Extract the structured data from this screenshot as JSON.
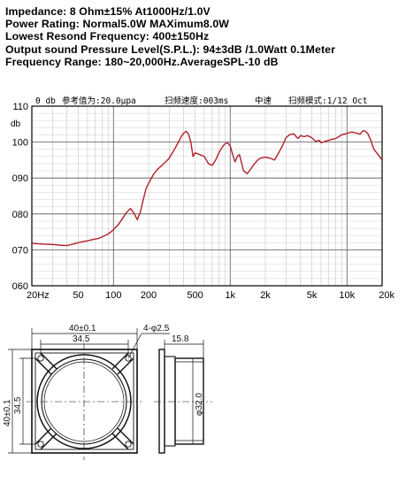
{
  "specs": {
    "impedance": "Impedance: 8 Ohm±15%  At1000Hz/1.0V",
    "power_rating": "Power Rating: Normal5.0W  MAXimum8.0W",
    "resonance": "Lowest Resond Frequency: 400±150Hz",
    "spl": "Output sound Pressure Level(S.P.L.): 94±3dB /1.0Watt 0.1Meter",
    "freq_range": "Frequency Range: 180~20,000Hz.AverageSPL-10 dB"
  },
  "chart_header": {
    "zero_db": "0 db",
    "ref_value": "参考值为:20.0μpa",
    "scan_speed": "扫频速度:003ms",
    "mid_speed": "中速",
    "scan_mode": "扫频模式:1/12 Oct"
  },
  "chart_data": {
    "type": "line",
    "ylabel": "db",
    "x_scale": "log",
    "xlim": [
      20,
      20000
    ],
    "ylim": [
      60,
      110
    ],
    "grid": true,
    "y_ticks": [
      "110",
      "100",
      "090",
      "080",
      "070",
      "060"
    ],
    "y_tick_values": [
      110,
      100,
      90,
      80,
      70,
      60
    ],
    "x_ticks": [
      "20Hz",
      "50",
      "100",
      "200",
      "500",
      "1k",
      "2k",
      "5k",
      "10k",
      "20k"
    ],
    "x_tick_values": [
      20,
      50,
      100,
      200,
      500,
      1000,
      2000,
      5000,
      10000,
      20000
    ],
    "line_color": "#b0202a",
    "series": [
      {
        "x": [
          20,
          25,
          30,
          35,
          40,
          45,
          50,
          55,
          60,
          65,
          70,
          75,
          80,
          85,
          90,
          95,
          100,
          110,
          120,
          130,
          140,
          150,
          160,
          170,
          180,
          190,
          200,
          220,
          240,
          260,
          280,
          300,
          320,
          340,
          360,
          380,
          400,
          420,
          440,
          460,
          480,
          500,
          550,
          600,
          650,
          700,
          750,
          800,
          850,
          900,
          950,
          1000,
          1050,
          1100,
          1150,
          1200,
          1300,
          1400,
          1500,
          1600,
          1700,
          1800,
          2000,
          2200,
          2400,
          2600,
          2800,
          3000,
          3200,
          3500,
          3800,
          4000,
          4300,
          4600,
          5000,
          5400,
          5800,
          6000,
          6500,
          7000,
          7500,
          8000,
          8500,
          9000,
          10000,
          11000,
          12000,
          13000,
          13500,
          14000,
          15000,
          16000,
          17000,
          18000,
          20000
        ],
        "y": [
          71.8,
          71.6,
          71.5,
          71.3,
          71.2,
          71.6,
          72.0,
          72.3,
          72.5,
          72.8,
          73.0,
          73.2,
          73.6,
          74.0,
          74.4,
          75.0,
          75.6,
          77.0,
          78.8,
          80.5,
          81.5,
          80.2,
          78.4,
          80.5,
          84.0,
          87.0,
          88.5,
          91.0,
          92.5,
          93.5,
          94.5,
          95.5,
          97.0,
          98.5,
          100.0,
          101.5,
          102.5,
          103.0,
          102.2,
          100.0,
          96.0,
          97.0,
          96.5,
          96.0,
          94.0,
          93.5,
          95.0,
          97.0,
          98.5,
          99.5,
          99.8,
          99.0,
          96.5,
          94.5,
          96.0,
          96.5,
          92.0,
          91.2,
          92.5,
          93.8,
          94.8,
          95.5,
          95.8,
          95.5,
          95.0,
          97.0,
          99.0,
          101.2,
          102.0,
          102.3,
          101.0,
          101.8,
          101.5,
          101.8,
          101.2,
          100.2,
          100.5,
          99.8,
          100.2,
          100.5,
          100.8,
          101.0,
          101.5,
          102.0,
          102.4,
          102.8,
          102.5,
          102.2,
          103.0,
          103.2,
          102.5,
          100.5,
          98.0,
          97.0,
          95.0
        ]
      }
    ]
  },
  "drawing": {
    "dim_outer_width": "40±0.1",
    "dim_inner_width": "34.5",
    "dim_holes": "4-φ2.5",
    "dim_depth": "15.8",
    "dim_outer_height": "40±0.1",
    "dim_inner_height": "34.5",
    "dim_diameter": "φ32.0"
  }
}
